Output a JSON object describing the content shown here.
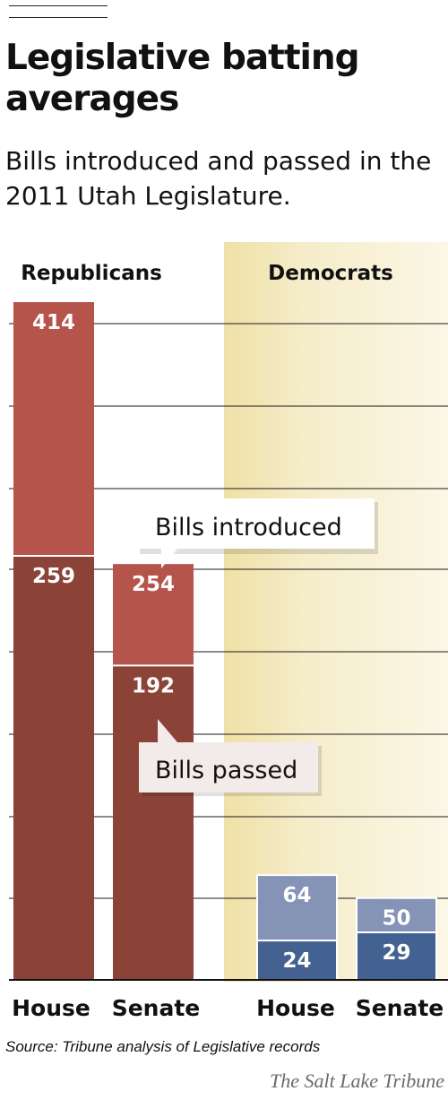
{
  "title": "Legislative batting averages",
  "subtitle": "Bills introduced and passed in the 2011 Utah Legislature.",
  "source": "Source: Tribune analysis of Legislative records",
  "credit": "The Salt Lake Tribune",
  "colors": {
    "rep_introduced": "#b5544b",
    "rep_passed": "#8a4336",
    "dem_introduced": "#8493b6",
    "dem_passed": "#446291",
    "dem_panel": "#f6efcf",
    "gridline": "#1a1a1a"
  },
  "chart_data": {
    "type": "bar",
    "stacked": "overlap",
    "grid": true,
    "groups": [
      {
        "name": "Republicans",
        "categories": [
          "House",
          "Senate"
        ],
        "introduced": [
          414,
          254
        ],
        "passed": [
          259,
          192
        ]
      },
      {
        "name": "Democrats",
        "categories": [
          "House",
          "Senate"
        ],
        "introduced": [
          64,
          50
        ],
        "passed": [
          24,
          29
        ]
      }
    ],
    "annotations": [
      "Bills introduced",
      "Bills passed"
    ],
    "ylim": [
      0,
      414
    ]
  }
}
